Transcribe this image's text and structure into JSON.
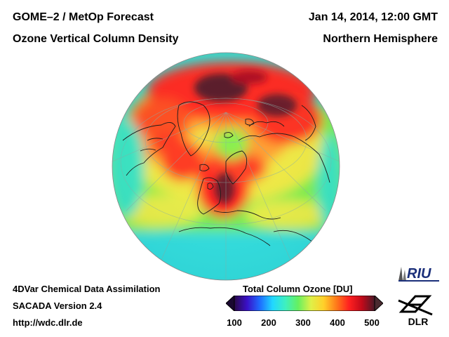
{
  "header": {
    "title_line1": "GOME–2 / MetOp Forecast",
    "title_line2": "Ozone Vertical Column Density",
    "datetime": "Jan 14, 2014, 12:00 GMT",
    "region": "Northern Hemisphere"
  },
  "footer": {
    "line1": "4DVar Chemical Data Assimilation",
    "line2": "SACADA Version 2.4",
    "line3": "http://wdc.dlr.de"
  },
  "colorbar": {
    "title": "Total Column Ozone [DU]",
    "ticks": [
      "100",
      "200",
      "300",
      "400",
      "500"
    ],
    "range": [
      100,
      500
    ],
    "colors": [
      "#2a0a4a",
      "#3a10c8",
      "#1e6cff",
      "#21d8ff",
      "#3ef0c0",
      "#66f060",
      "#dff048",
      "#ffd02a",
      "#ff7a1a",
      "#ff2020",
      "#c20a1a",
      "#4a1a28"
    ]
  },
  "logos": {
    "riu": "RIU",
    "dlr": "DLR"
  },
  "map": {
    "projection": "orthographic",
    "hemisphere": "Northern",
    "colors": {
      "ocean_base": "#33e0d0",
      "high": "#e8182a",
      "very_high": "#5a1a2a",
      "medium": "#7ef04a",
      "yellow": "#f4ea40",
      "coast": "#1a1a1a"
    }
  }
}
